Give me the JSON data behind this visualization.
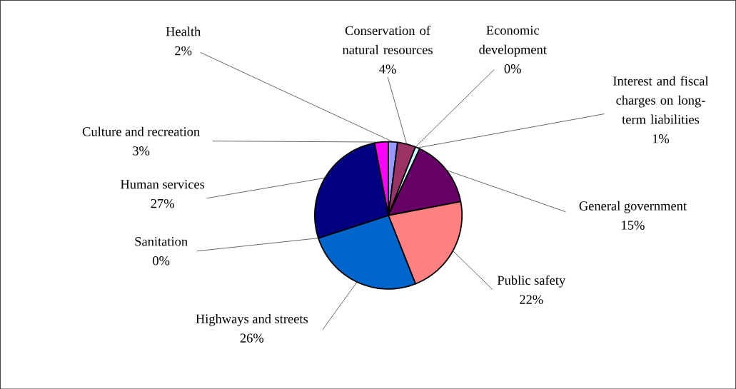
{
  "chart_data": {
    "type": "pie",
    "categories": [
      "Health",
      "Conservation of natural resources",
      "Economic development",
      "Interest and fiscal charges on long-term liabilities",
      "General government",
      "Public safety",
      "Highways and streets",
      "Sanitation",
      "Human services",
      "Culture and recreation"
    ],
    "values": [
      2,
      4,
      0,
      1,
      15,
      22,
      26,
      0,
      27,
      3
    ],
    "value_labels": [
      "2%",
      "4%",
      "0%",
      "1%",
      "15%",
      "22%",
      "26%",
      "0%",
      "27%",
      "3%"
    ],
    "colors": [
      "#9999ff",
      "#993366",
      "#ffffcc",
      "#ccffff",
      "#660066",
      "#ff8080",
      "#0066cc",
      "#c0c0c0",
      "#000080",
      "#ff00ff"
    ]
  }
}
